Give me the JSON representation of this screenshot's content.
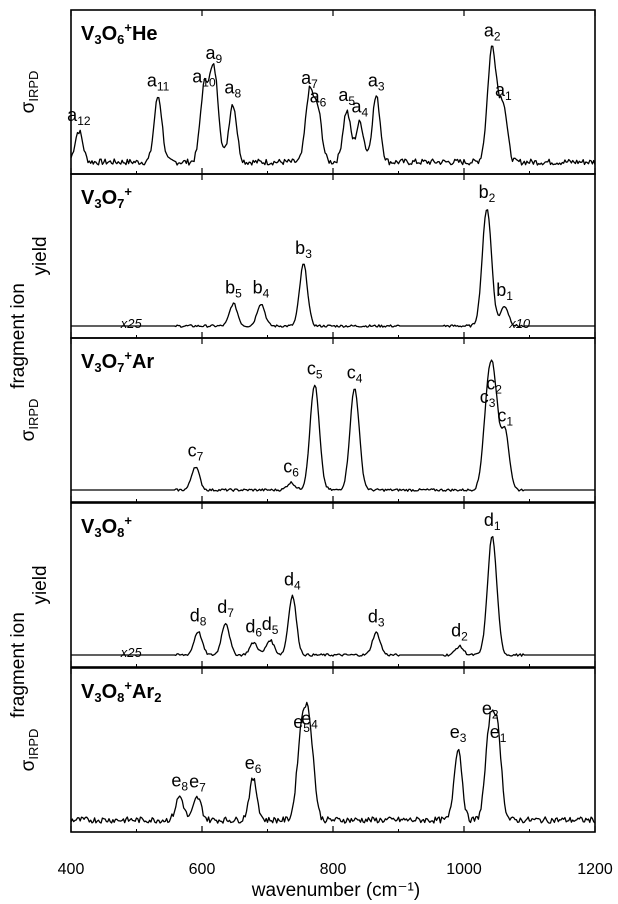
{
  "chart_data": {
    "type": "line",
    "xlabel": "wavenumber (cm⁻¹)",
    "xlim": [
      400,
      1200
    ],
    "x_ticks": [
      400,
      600,
      800,
      1000,
      1200
    ],
    "grid": false,
    "y_ticks_shown": false,
    "panels": [
      {
        "id": "V3O6+He",
        "title": {
          "t": [
            [
              "V",
              ""
            ],
            [
              "3",
              "sub"
            ],
            [
              "O",
              ""
            ],
            [
              "6",
              "sub"
            ],
            [
              "+",
              "sup"
            ],
            [
              "He",
              ""
            ]
          ]
        },
        "ylabel": {
          "main": "σ",
          "sub": "IRPD"
        },
        "scale_notes": [],
        "peaks": [
          {
            "label": "a",
            "n": "12",
            "x": 412,
            "h": 0.25
          },
          {
            "label": "a",
            "n": "11",
            "x": 533,
            "h": 0.53
          },
          {
            "label": "a",
            "n": "10",
            "x": 603,
            "h": 0.56
          },
          {
            "label": "a",
            "n": "9",
            "x": 618,
            "h": 0.75
          },
          {
            "label": "a",
            "n": "8",
            "x": 647,
            "h": 0.47
          },
          {
            "label": "a",
            "n": "7",
            "x": 764,
            "h": 0.55
          },
          {
            "label": "a",
            "n": "6",
            "x": 777,
            "h": 0.4
          },
          {
            "label": "a",
            "n": "5",
            "x": 821,
            "h": 0.41
          },
          {
            "label": "a",
            "n": "4",
            "x": 841,
            "h": 0.32
          },
          {
            "label": "a",
            "n": "3",
            "x": 866,
            "h": 0.53
          },
          {
            "label": "a",
            "n": "2",
            "x": 1043,
            "h": 0.93
          },
          {
            "label": "a",
            "n": "1",
            "x": 1060,
            "h": 0.45
          }
        ]
      },
      {
        "id": "V3O7+",
        "title": {
          "t": [
            [
              "V",
              ""
            ],
            [
              "3",
              "sub"
            ],
            [
              "O",
              ""
            ],
            [
              "7",
              "sub"
            ],
            [
              "+",
              "sup"
            ]
          ]
        },
        "ylabel": {
          "lines": [
            "fragment ion",
            "yield"
          ]
        },
        "scale_notes": [
          {
            "text": "x25",
            "x": 492
          },
          {
            "text": "x10",
            "x": 1085
          }
        ],
        "peaks": [
          {
            "label": "b",
            "n": "5",
            "x": 648,
            "h": 0.18
          },
          {
            "label": "b",
            "n": "4",
            "x": 690,
            "h": 0.18
          },
          {
            "label": "b",
            "n": "3",
            "x": 755,
            "h": 0.5
          },
          {
            "label": "b",
            "n": "2",
            "x": 1035,
            "h": 0.95
          },
          {
            "label": "b",
            "n": "1",
            "x": 1062,
            "h": 0.16
          }
        ]
      },
      {
        "id": "V3O7+Ar",
        "title": {
          "t": [
            [
              "V",
              ""
            ],
            [
              "3",
              "sub"
            ],
            [
              "O",
              ""
            ],
            [
              "7",
              "sub"
            ],
            [
              "+",
              "sup"
            ],
            [
              "Ar",
              ""
            ]
          ]
        },
        "ylabel": {
          "main": "σ",
          "sub": "IRPD"
        },
        "scale_notes": [],
        "peaks": [
          {
            "label": "c",
            "n": "7",
            "x": 590,
            "h": 0.19
          },
          {
            "label": "c",
            "n": "6",
            "x": 736,
            "h": 0.06
          },
          {
            "label": "c",
            "n": "5",
            "x": 772,
            "h": 0.85
          },
          {
            "label": "c",
            "n": "4",
            "x": 833,
            "h": 0.82
          },
          {
            "label": "c",
            "n": "3",
            "x": 1036,
            "h": 0.62
          },
          {
            "label": "c",
            "n": "2",
            "x": 1046,
            "h": 0.73
          },
          {
            "label": "c",
            "n": "1",
            "x": 1063,
            "h": 0.47
          }
        ]
      },
      {
        "id": "V3O8+",
        "title": {
          "t": [
            [
              "V",
              ""
            ],
            [
              "3",
              "sub"
            ],
            [
              "O",
              ""
            ],
            [
              "8",
              "sub"
            ],
            [
              "+",
              "sup"
            ]
          ]
        },
        "ylabel": {
          "lines": [
            "fragment ion",
            "yield"
          ]
        },
        "scale_notes": [
          {
            "text": "x25",
            "x": 492
          }
        ],
        "peaks": [
          {
            "label": "d",
            "n": "8",
            "x": 594,
            "h": 0.19
          },
          {
            "label": "d",
            "n": "7",
            "x": 636,
            "h": 0.26
          },
          {
            "label": "d",
            "n": "6",
            "x": 679,
            "h": 0.1
          },
          {
            "label": "d",
            "n": "5",
            "x": 704,
            "h": 0.12
          },
          {
            "label": "d",
            "n": "4",
            "x": 738,
            "h": 0.48
          },
          {
            "label": "d",
            "n": "3",
            "x": 866,
            "h": 0.18
          },
          {
            "label": "d",
            "n": "2",
            "x": 993,
            "h": 0.07
          },
          {
            "label": "d",
            "n": "1",
            "x": 1043,
            "h": 0.96
          }
        ]
      },
      {
        "id": "V3O8+Ar2",
        "title": {
          "t": [
            [
              "V",
              ""
            ],
            [
              "3",
              "sub"
            ],
            [
              "O",
              ""
            ],
            [
              "8",
              "sub"
            ],
            [
              "+",
              "sup"
            ],
            [
              "Ar",
              ""
            ],
            [
              "2",
              "sub"
            ]
          ]
        },
        "ylabel": {
          "main": "σ",
          "sub": "IRPD"
        },
        "scale_notes": [],
        "peaks": [
          {
            "label": "e",
            "n": "8",
            "x": 566,
            "h": 0.19
          },
          {
            "label": "e",
            "n": "7",
            "x": 593,
            "h": 0.18
          },
          {
            "label": "e",
            "n": "6",
            "x": 678,
            "h": 0.33
          },
          {
            "label": "e",
            "n": "5",
            "x": 752,
            "h": 0.66
          },
          {
            "label": "e",
            "n": "4",
            "x": 764,
            "h": 0.69
          },
          {
            "label": "e",
            "n": "3",
            "x": 991,
            "h": 0.58
          },
          {
            "label": "e",
            "n": "2",
            "x": 1040,
            "h": 0.77
          },
          {
            "label": "e",
            "n": "1",
            "x": 1052,
            "h": 0.58
          }
        ]
      }
    ]
  }
}
